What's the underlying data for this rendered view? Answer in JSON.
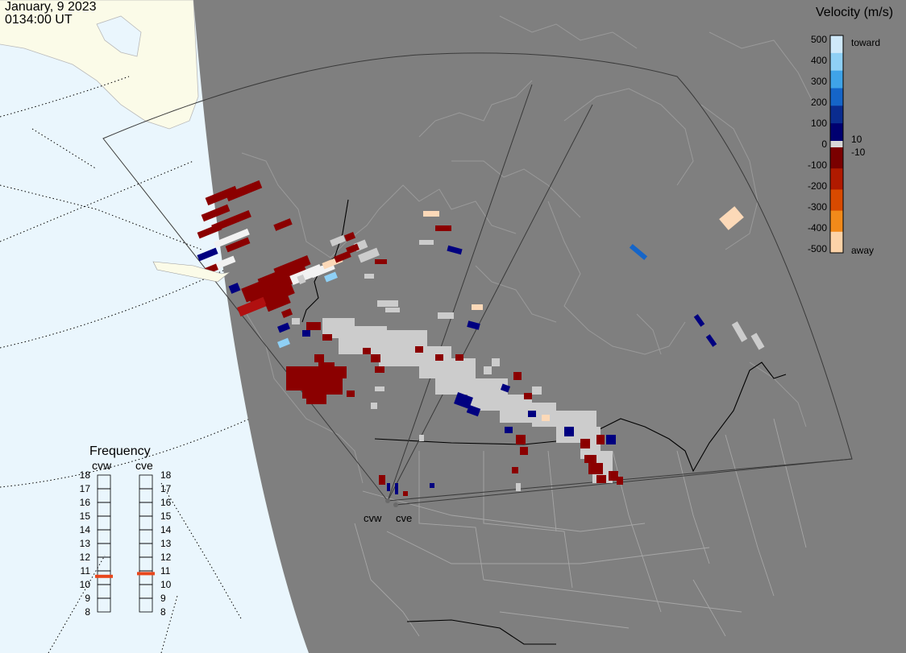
{
  "header": {
    "date": "January, 9 2023",
    "time": "0134:00 UT"
  },
  "legend": {
    "title": "Velocity (m/s)",
    "ticks": [
      "500",
      "400",
      "300",
      "200",
      "100",
      "0",
      "-100",
      "-200",
      "-300",
      "-400",
      "-500"
    ],
    "band_labels": {
      "plus": "10",
      "minus": "-10"
    },
    "toward_label": "toward",
    "away_label": "away",
    "colors": [
      "#cfe9fa",
      "#8fd0f5",
      "#3fa3e8",
      "#1565c8",
      "#0a2c8f",
      "#000070",
      "#7a0000",
      "#b01a00",
      "#d84a00",
      "#f28a1a",
      "#fcd3a8"
    ],
    "zero_band_color": "#d8d8d8"
  },
  "frequency": {
    "title": "Frequency",
    "radars": [
      {
        "code": "cvw",
        "freq_mhz": 10.6
      },
      {
        "code": "cve",
        "freq_mhz": 10.8
      }
    ],
    "scale_labels": [
      "18",
      "17",
      "16",
      "15",
      "14",
      "13",
      "12",
      "11",
      "10",
      "9",
      "8"
    ],
    "marker_color": "#e8471c"
  },
  "map": {
    "station_labels": [
      "cvw",
      "cve"
    ],
    "colors": {
      "ocean": "#eaf6fd",
      "daylight_land": "#fbfbe8",
      "night": "#7f7f7f",
      "coastline": "#9a9a9a",
      "border": "#000000",
      "fov": "#3a3a3a",
      "ground_scatter": "#cccccc"
    }
  }
}
